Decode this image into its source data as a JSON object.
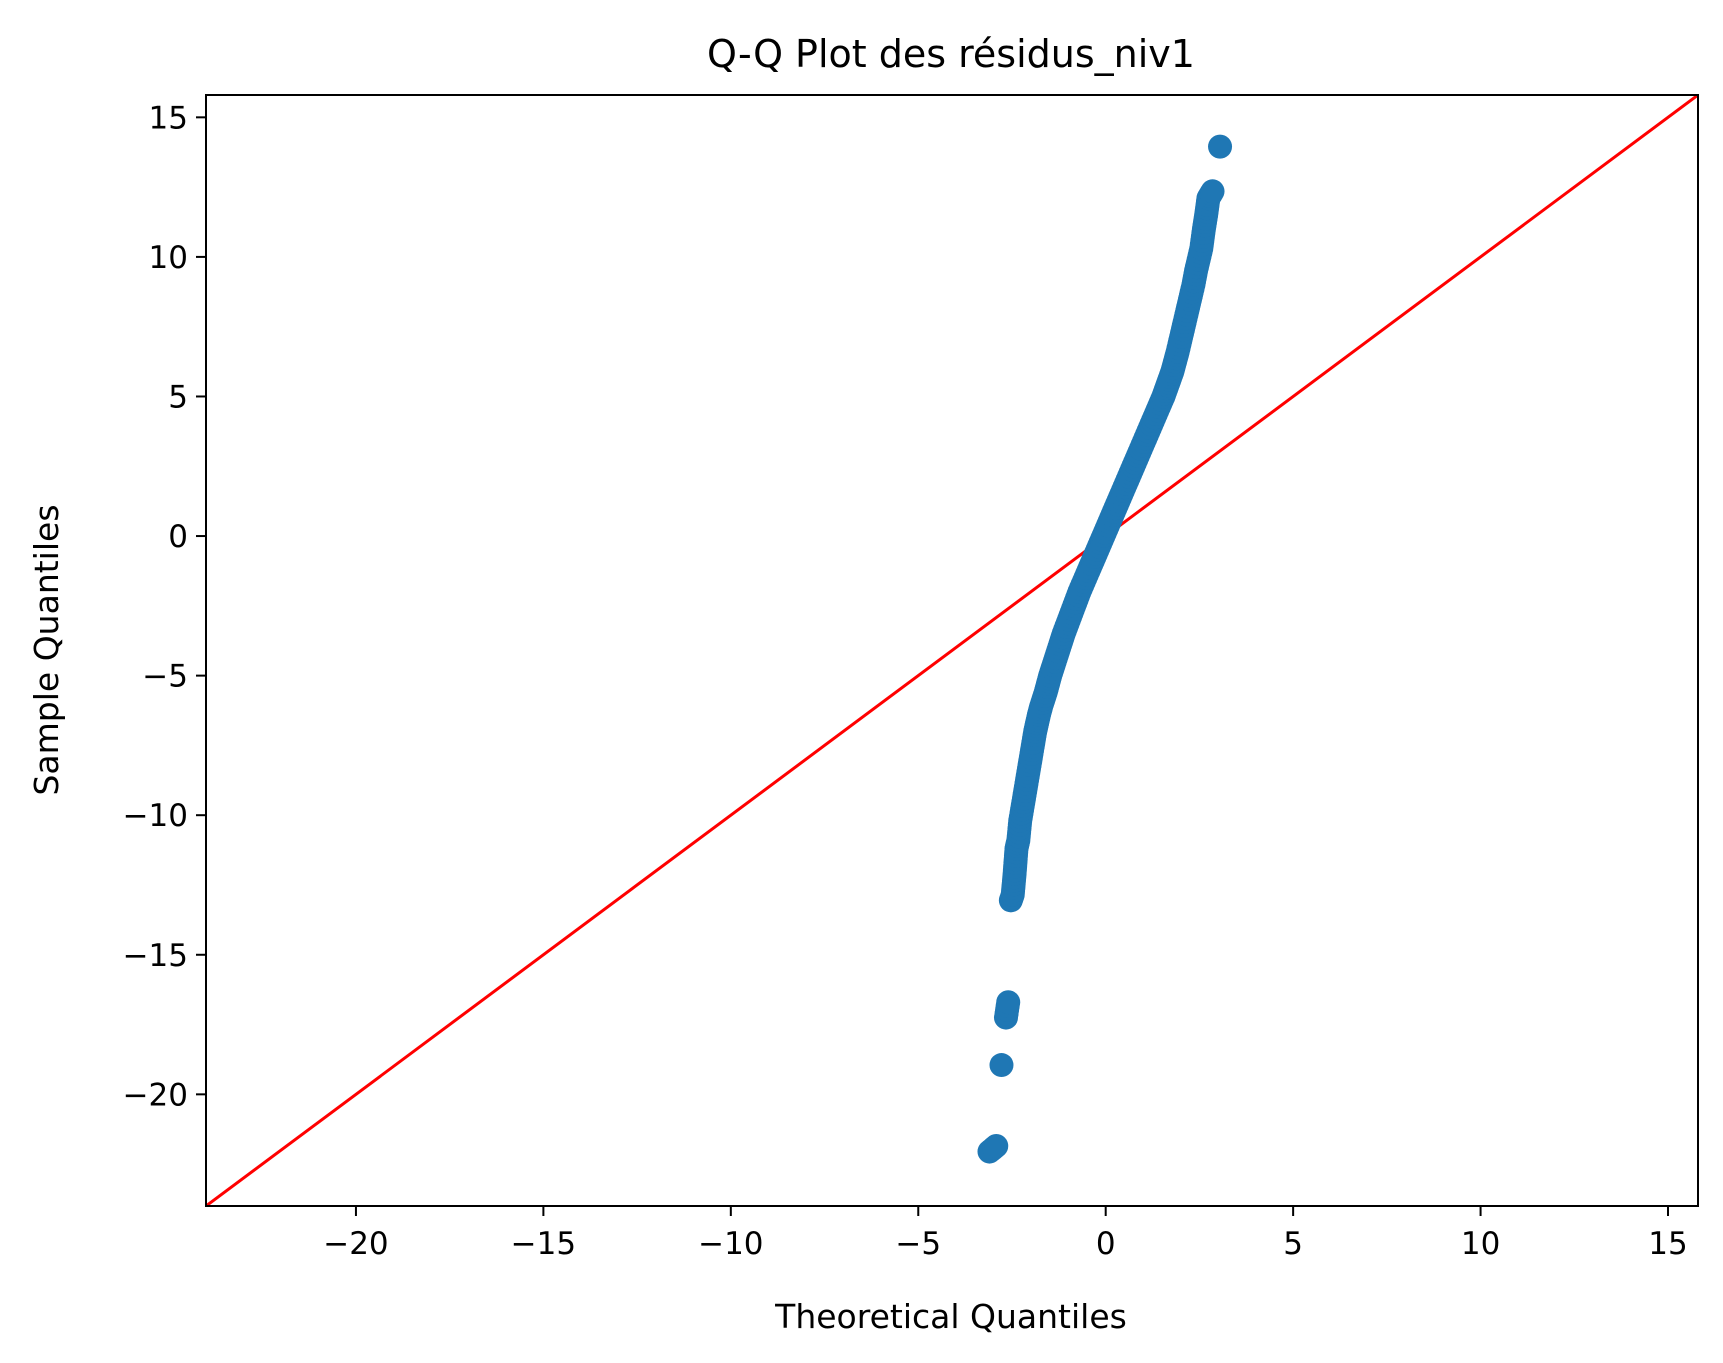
{
  "chart_data": {
    "type": "scatter",
    "title": "Q-Q Plot des résidus_niv1",
    "xlabel": "Theoretical Quantiles",
    "ylabel": "Sample Quantiles",
    "xlim": [
      -24,
      15.8
    ],
    "ylim": [
      -24,
      15.8
    ],
    "x_ticks": [
      -20,
      -15,
      -10,
      -5,
      0,
      5,
      10,
      15
    ],
    "y_ticks": [
      -20,
      -15,
      -10,
      -5,
      0,
      5,
      10,
      15
    ],
    "x_tick_labels": [
      "−20",
      "−15",
      "−10",
      "−5",
      "0",
      "5",
      "10",
      "15"
    ],
    "y_tick_labels": [
      "−20",
      "−15",
      "−10",
      "−5",
      "0",
      "5",
      "10",
      "15"
    ],
    "grid": false,
    "series": [
      {
        "marker_color": "#1f77b4",
        "points": [
          [
            -3.1,
            -22.05
          ],
          [
            -2.92,
            -21.85
          ],
          [
            -2.78,
            -18.95
          ],
          [
            -2.66,
            -17.25
          ],
          [
            -2.6,
            -16.7
          ],
          [
            -2.53,
            -13.05
          ],
          [
            -2.48,
            -12.85
          ],
          [
            -2.43,
            -12.1
          ],
          [
            -2.38,
            -11.2
          ],
          [
            -2.33,
            -10.9
          ],
          [
            -2.28,
            -10.2
          ],
          [
            -2.23,
            -9.8
          ],
          [
            -2.18,
            -9.4
          ],
          [
            -2.13,
            -9.0
          ],
          [
            -2.08,
            -8.6
          ],
          [
            -2.03,
            -8.2
          ],
          [
            -1.98,
            -7.8
          ],
          [
            -1.93,
            -7.4
          ],
          [
            -1.88,
            -7.0
          ],
          [
            -1.83,
            -6.7
          ],
          [
            -1.78,
            -6.4
          ],
          [
            -1.72,
            -6.1
          ],
          [
            -1.66,
            -5.85
          ],
          [
            -1.6,
            -5.6
          ],
          [
            -1.54,
            -5.3
          ],
          [
            -1.48,
            -5.0
          ],
          [
            -1.42,
            -4.75
          ],
          [
            -1.36,
            -4.5
          ],
          [
            -1.3,
            -4.25
          ],
          [
            -1.24,
            -4.0
          ],
          [
            -1.18,
            -3.75
          ],
          [
            -1.12,
            -3.5
          ],
          [
            -1.05,
            -3.25
          ],
          [
            -0.98,
            -3.0
          ],
          [
            -0.91,
            -2.75
          ],
          [
            -0.84,
            -2.5
          ],
          [
            -0.77,
            -2.25
          ],
          [
            -0.7,
            -2.0
          ],
          [
            -0.62,
            -1.75
          ],
          [
            -0.54,
            -1.5
          ],
          [
            -0.46,
            -1.25
          ],
          [
            -0.38,
            -1.0
          ],
          [
            -0.3,
            -0.75
          ],
          [
            -0.22,
            -0.5
          ],
          [
            -0.14,
            -0.25
          ],
          [
            -0.06,
            0.0
          ],
          [
            0.02,
            0.25
          ],
          [
            0.1,
            0.5
          ],
          [
            0.18,
            0.75
          ],
          [
            0.26,
            1.0
          ],
          [
            0.34,
            1.25
          ],
          [
            0.42,
            1.5
          ],
          [
            0.5,
            1.75
          ],
          [
            0.58,
            2.0
          ],
          [
            0.66,
            2.25
          ],
          [
            0.74,
            2.5
          ],
          [
            0.82,
            2.75
          ],
          [
            0.9,
            3.0
          ],
          [
            0.98,
            3.25
          ],
          [
            1.06,
            3.5
          ],
          [
            1.14,
            3.75
          ],
          [
            1.22,
            4.0
          ],
          [
            1.3,
            4.25
          ],
          [
            1.38,
            4.5
          ],
          [
            1.46,
            4.75
          ],
          [
            1.54,
            5.0
          ],
          [
            1.62,
            5.3
          ],
          [
            1.7,
            5.6
          ],
          [
            1.78,
            5.9
          ],
          [
            1.85,
            6.25
          ],
          [
            1.92,
            6.6
          ],
          [
            1.99,
            7.0
          ],
          [
            2.06,
            7.4
          ],
          [
            2.13,
            7.8
          ],
          [
            2.2,
            8.2
          ],
          [
            2.27,
            8.6
          ],
          [
            2.34,
            9.0
          ],
          [
            2.41,
            9.5
          ],
          [
            2.48,
            9.9
          ],
          [
            2.55,
            10.3
          ],
          [
            2.62,
            11.0
          ],
          [
            2.68,
            11.5
          ],
          [
            2.74,
            12.1
          ],
          [
            2.85,
            12.35
          ],
          [
            3.05,
            13.95
          ]
        ]
      },
      {
        "line_color": "#ff0000",
        "line": [
          [
            -24,
            -24
          ],
          [
            15.8,
            15.8
          ]
        ]
      }
    ]
  }
}
